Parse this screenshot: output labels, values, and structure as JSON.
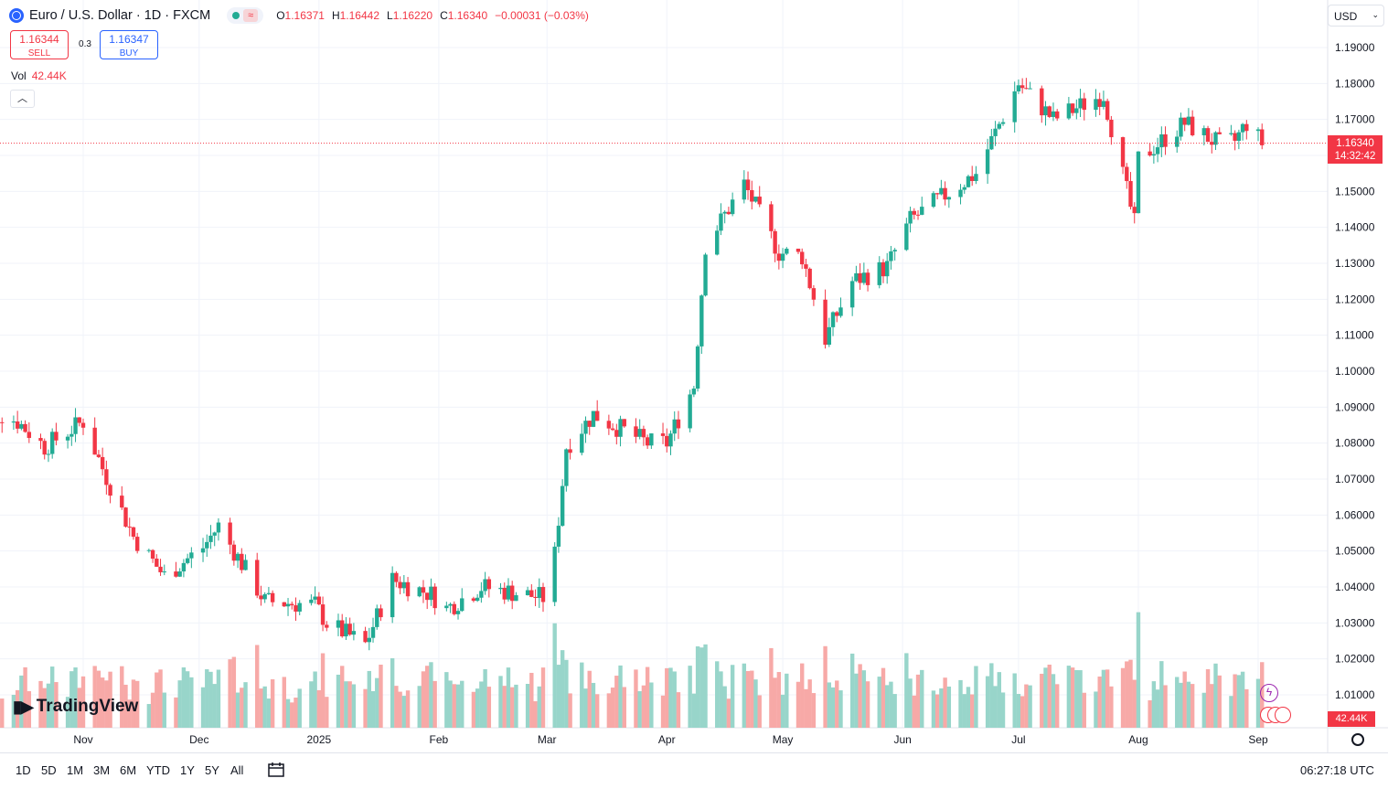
{
  "header": {
    "symbol_title": "Euro / U.S. Dollar · 1D · FXCM",
    "open_label": "O",
    "open": "1.16371",
    "high_label": "H",
    "high": "1.16442",
    "low_label": "L",
    "low": "1.16220",
    "close_label": "C",
    "close": "1.16340",
    "change": "−0.00031 (−0.03%)"
  },
  "trade": {
    "sell_price": "1.16344",
    "sell_label": "SELL",
    "spread": "0.3",
    "buy_price": "1.16347",
    "buy_label": "BUY"
  },
  "volume": {
    "label": "Vol",
    "value": "42.44K",
    "badge": "42.44K"
  },
  "currency_selector": "USD",
  "last_price": {
    "price": "1.16340",
    "countdown": "14:32:42"
  },
  "branding": {
    "logo_text": "TradingView"
  },
  "ranges": [
    "1D",
    "5D",
    "1M",
    "3M",
    "6M",
    "YTD",
    "1Y",
    "5Y",
    "All"
  ],
  "clock": "06:27:18 UTC",
  "colors": {
    "up": "#22ab94",
    "down": "#f23645",
    "vol_up": "#98d5ca",
    "vol_down": "#f7a9a7",
    "grid": "#f0f3fa"
  },
  "icons": [
    "globe-icon",
    "chevron-up-icon",
    "chevron-down-icon",
    "calendar-icon",
    "settings-icon",
    "lightning-icon",
    "flag-icon"
  ],
  "chart_data": {
    "type": "candlestick",
    "title": "Euro / U.S. Dollar · 1D · FXCM",
    "y_ticks": [
      "1.19000",
      "1.18000",
      "1.17000",
      "1.16000",
      "1.15000",
      "1.14000",
      "1.13000",
      "1.12000",
      "1.11000",
      "1.10000",
      "1.09000",
      "1.08000",
      "1.07000",
      "1.06000",
      "1.05000",
      "1.04000",
      "1.03000",
      "1.02000",
      "1.01000"
    ],
    "x_ticks": [
      "Nov",
      "Dec",
      "2025",
      "Feb",
      "Mar",
      "Apr",
      "May",
      "Jun",
      "Jul",
      "Aug",
      "Sep"
    ],
    "ylim": [
      1.005,
      1.193
    ],
    "x": [
      "Oct 01 2024",
      "Oct 15 2024",
      "Oct 22 2024",
      "Nov 01 2024",
      "Nov 06 2024",
      "Nov 14 2024",
      "Nov 22 2024",
      "Dec 02 2024",
      "Dec 06 2024",
      "Dec 18 2024",
      "Dec 31 2024",
      "Jan 03 2025",
      "Jan 13 2025",
      "Jan 20 2025",
      "Jan 30 2025",
      "Feb 03 2025",
      "Feb 12 2025",
      "Feb 28 2025",
      "Mar 03 2025",
      "Mar 06 2025",
      "Mar 13 2025",
      "Mar 27 2025",
      "Apr 01 2025",
      "Apr 08 2025",
      "Apr 11 2025",
      "Apr 21 2025",
      "Apr 30 2025",
      "May 06 2025",
      "May 12 2025",
      "May 19 2025",
      "May 28 2025",
      "Jun 03 2025",
      "Jun 12 2025",
      "Jun 20 2025",
      "Jul 01 2025",
      "Jul 10 2025",
      "Jul 23 2025",
      "Jul 31 2025",
      "Aug 01 2025",
      "Aug 13 2025",
      "Aug 22 2025",
      "Aug 26 2025",
      "Aug 29 2025",
      "Sep 02 2025"
    ],
    "close": [
      1.093,
      1.086,
      1.079,
      1.086,
      1.073,
      1.054,
      1.043,
      1.051,
      1.057,
      1.036,
      1.035,
      1.03,
      1.024,
      1.042,
      1.038,
      1.034,
      1.04,
      1.037,
      1.049,
      1.079,
      1.088,
      1.08,
      1.08,
      1.096,
      1.135,
      1.152,
      1.133,
      1.132,
      1.109,
      1.125,
      1.129,
      1.142,
      1.149,
      1.155,
      1.18,
      1.17,
      1.177,
      1.141,
      1.159,
      1.169,
      1.163,
      1.164,
      1.169,
      1.1634
    ],
    "volume_badge": "42.44K"
  }
}
